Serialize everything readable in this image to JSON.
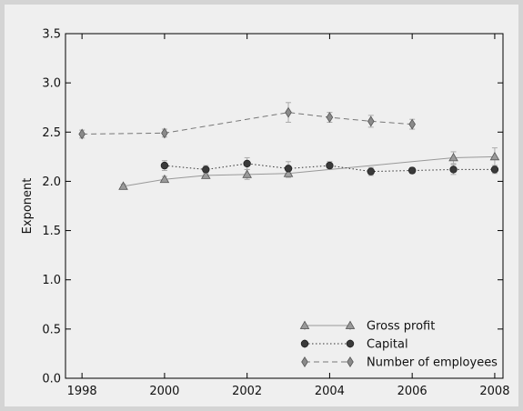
{
  "chart_data": {
    "type": "line",
    "title": "",
    "xlabel": "",
    "ylabel": "Exponent",
    "xlim": [
      1997.6,
      2008.2
    ],
    "ylim": [
      0.0,
      3.5
    ],
    "xticks": [
      1998,
      2000,
      2002,
      2004,
      2006,
      2008
    ],
    "xtick_labels": [
      "1998",
      "2000",
      "2002",
      "2004",
      "2006",
      "2008"
    ],
    "yticks": [
      0.0,
      0.5,
      1.0,
      1.5,
      2.0,
      2.5,
      3.0,
      3.5
    ],
    "ytick_labels": [
      "0.0",
      "0.5",
      "1.0",
      "1.5",
      "2.0",
      "2.5",
      "3.0",
      "3.5"
    ],
    "grid": false,
    "legend_position": "lower-right",
    "series": [
      {
        "name": "Gross profit",
        "marker": "triangle",
        "line_style": "solid",
        "color": "#999999",
        "marker_color": "#9a9a9a",
        "x": [
          1999,
          2000,
          2001,
          2002,
          2003,
          2004,
          2005,
          2006,
          2007,
          2008
        ],
        "y": [
          1.95,
          2.02,
          2.06,
          2.07,
          2.08,
          2.12,
          2.16,
          2.2,
          2.24,
          2.25
        ],
        "err": [
          0.02,
          0.03,
          0.03,
          0.05,
          0.04,
          0.03,
          0.03,
          0.03,
          0.06,
          0.09
        ],
        "marker_shown": [
          true,
          true,
          true,
          true,
          true,
          false,
          false,
          false,
          true,
          true
        ]
      },
      {
        "name": "Capital",
        "marker": "circle",
        "line_style": "dotted",
        "color": "#333333",
        "marker_color": "#3a3a3a",
        "x": [
          2000,
          2001,
          2002,
          2003,
          2004,
          2005,
          2006,
          2007,
          2008
        ],
        "y": [
          2.16,
          2.12,
          2.18,
          2.13,
          2.16,
          2.1,
          2.11,
          2.12,
          2.12
        ],
        "err": [
          0.05,
          0.04,
          0.06,
          0.07,
          0.04,
          0.04,
          0.03,
          0.05,
          0.04
        ],
        "marker_shown": [
          true,
          true,
          true,
          true,
          true,
          true,
          true,
          true,
          true
        ]
      },
      {
        "name": "Number of employees",
        "marker": "diamond",
        "line_style": "dashed",
        "color": "#777777",
        "marker_color": "#8a8a8a",
        "x": [
          1998,
          2000,
          2003,
          2004,
          2005,
          2006
        ],
        "y": [
          2.48,
          2.49,
          2.7,
          2.65,
          2.61,
          2.58
        ],
        "err": [
          0.04,
          0.04,
          0.1,
          0.05,
          0.06,
          0.05
        ],
        "marker_shown": [
          true,
          true,
          true,
          true,
          true,
          true
        ]
      }
    ]
  }
}
